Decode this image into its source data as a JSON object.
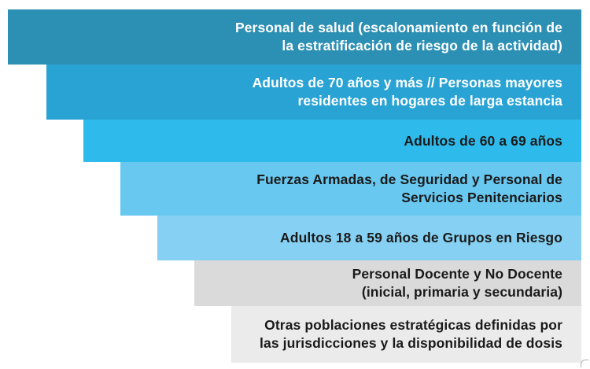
{
  "steps": [
    {
      "lines": [
        "Personal de salud (escalonamiento en función de",
        "la estratificación de riesgo de la actividad)"
      ],
      "background": "#2c8fb4",
      "text_color": "#ffffff"
    },
    {
      "lines": [
        "Adultos de 70 años y más // Personas mayores",
        "residentes en hogares de larga estancia"
      ],
      "background": "#29a3d4",
      "text_color": "#ffffff"
    },
    {
      "lines": [
        "Adultos de 60 a 69 años"
      ],
      "background": "#2ebbeb",
      "text_color": "#1a1a1a"
    },
    {
      "lines": [
        "Fuerzas Armadas, de Seguridad y Personal de",
        "Servicios Penitenciarios"
      ],
      "background": "#68c8f0",
      "text_color": "#1a1a1a"
    },
    {
      "lines": [
        "Adultos 18 a 59 años de Grupos en Riesgo"
      ],
      "background": "#86d1f3",
      "text_color": "#1a1a1a"
    },
    {
      "lines": [
        "Personal Docente y No Docente",
        "(inicial, primaria y secundaria)"
      ],
      "background": "#dadada",
      "text_color": "#1a1a1a"
    },
    {
      "lines": [
        "Otras poblaciones estratégicas definidas por",
        "las jurisdicciones y la disponibilidad de dosis"
      ],
      "background": "#ebebeb",
      "text_color": "#1a1a1a"
    }
  ]
}
